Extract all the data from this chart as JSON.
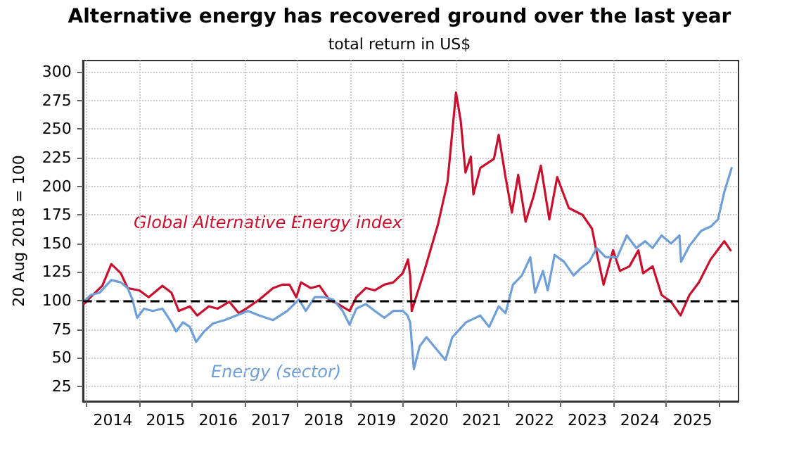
{
  "chart_data": {
    "type": "line",
    "title": "Alternative energy has recovered ground over the last year",
    "subtitle": "total return in US$",
    "ylabel": "20 Aug 2018 = 100",
    "xlim": [
      2013.93,
      2026.37
    ],
    "xticks": [
      {
        "value": 2014,
        "label": null
      },
      {
        "value": 2014.5,
        "label": "2014"
      },
      {
        "value": 2015,
        "label": null
      },
      {
        "value": 2015.5,
        "label": "2015"
      },
      {
        "value": 2016,
        "label": null
      },
      {
        "value": 2016.5,
        "label": "2016"
      },
      {
        "value": 2017,
        "label": null
      },
      {
        "value": 2017.5,
        "label": "2017"
      },
      {
        "value": 2018,
        "label": null
      },
      {
        "value": 2018.5,
        "label": "2018"
      },
      {
        "value": 2019,
        "label": null
      },
      {
        "value": 2019.5,
        "label": "2019"
      },
      {
        "value": 2020,
        "label": null
      },
      {
        "value": 2020.5,
        "label": "2020"
      },
      {
        "value": 2021,
        "label": null
      },
      {
        "value": 2021.5,
        "label": "2021"
      },
      {
        "value": 2022,
        "label": null
      },
      {
        "value": 2022.5,
        "label": "2022"
      },
      {
        "value": 2023,
        "label": null
      },
      {
        "value": 2023.5,
        "label": "2023"
      },
      {
        "value": 2024,
        "label": null
      },
      {
        "value": 2024.5,
        "label": "2024"
      },
      {
        "value": 2025,
        "label": null
      },
      {
        "value": 2025.5,
        "label": "2025"
      },
      {
        "value": 2026,
        "label": null
      }
    ],
    "ylim": [
      12,
      310
    ],
    "yticks": [
      25,
      50,
      75,
      100,
      125,
      150,
      175,
      200,
      225,
      250,
      275,
      300
    ],
    "grid": true,
    "marker": "none",
    "line_style": "solid",
    "ref_lines": [
      {
        "axis": "y",
        "value": 100,
        "color": "#000000",
        "line_style": "dashed"
      }
    ],
    "series": [
      {
        "name": "Global Alternative Energy index",
        "color": "#c8102e",
        "x": [
          2013.95,
          2014.12,
          2014.3,
          2014.47,
          2014.65,
          2014.78,
          2015,
          2015.18,
          2015.44,
          2015.61,
          2015.75,
          2015.96,
          2016.1,
          2016.32,
          2016.49,
          2016.71,
          2016.89,
          2017.06,
          2017.28,
          2017.54,
          2017.72,
          2017.85,
          2017.98,
          2018.07,
          2018.25,
          2018.42,
          2018.6,
          2018.77,
          2018.99,
          2019.12,
          2019.3,
          2019.47,
          2019.65,
          2019.82,
          2020,
          2020.1,
          2020.14,
          2020.17,
          2020.41,
          2020.67,
          2020.85,
          2021.01,
          2021.1,
          2021.19,
          2021.29,
          2021.34,
          2021.47,
          2021.6,
          2021.73,
          2021.82,
          2021.95,
          2022.07,
          2022.19,
          2022.33,
          2022.48,
          2022.62,
          2022.78,
          2022.93,
          2023.15,
          2023.41,
          2023.59,
          2023.68,
          2023.81,
          2023.99,
          2024.12,
          2024.3,
          2024.47,
          2024.56,
          2024.74,
          2024.91,
          2025.09,
          2025.27,
          2025.44,
          2025.62,
          2025.84,
          2026.1,
          2026.22
        ],
        "values": [
          97,
          105,
          113,
          132,
          124,
          111,
          109,
          103,
          113,
          107,
          91,
          95,
          87,
          95,
          93,
          99,
          89,
          94,
          101,
          111,
          114,
          114,
          103,
          116,
          111,
          113,
          101,
          97,
          91,
          103,
          111,
          109,
          114,
          116,
          124,
          136,
          122,
          91,
          126,
          167,
          204,
          282,
          257,
          212,
          226,
          193,
          216,
          220,
          224,
          245,
          208,
          177,
          210,
          169,
          191,
          218,
          171,
          208,
          181,
          175,
          163,
          142,
          114,
          144,
          126,
          130,
          144,
          124,
          130,
          105,
          99,
          87,
          105,
          116,
          136,
          152,
          144
        ]
      },
      {
        "name": "Energy (sector)",
        "color": "#6f9fd8",
        "x": [
          2013.95,
          2014.08,
          2014.25,
          2014.47,
          2014.65,
          2014.78,
          2014.87,
          2014.96,
          2015.09,
          2015.26,
          2015.44,
          2015.61,
          2015.7,
          2015.83,
          2015.96,
          2016.08,
          2016.23,
          2016.4,
          2016.62,
          2016.84,
          2017.06,
          2017.28,
          2017.54,
          2017.81,
          2018.03,
          2018.16,
          2018.33,
          2018.51,
          2018.68,
          2018.86,
          2018.99,
          2019.12,
          2019.3,
          2019.47,
          2019.65,
          2019.82,
          2020,
          2020.09,
          2020.14,
          2020.21,
          2020.32,
          2020.45,
          2020.63,
          2020.81,
          2020.94,
          2021.2,
          2021.47,
          2021.64,
          2021.82,
          2021.95,
          2022.09,
          2022.26,
          2022.42,
          2022.51,
          2022.66,
          2022.75,
          2022.88,
          2023.06,
          2023.24,
          2023.37,
          2023.54,
          2023.68,
          2023.85,
          2024.07,
          2024.25,
          2024.43,
          2024.6,
          2024.74,
          2024.91,
          2025.09,
          2025.25,
          2025.28,
          2025.44,
          2025.66,
          2025.85,
          2025.98,
          2026.1,
          2026.24
        ],
        "values": [
          99,
          105,
          107,
          118,
          116,
          111,
          101,
          85,
          93,
          91,
          93,
          81,
          73,
          81,
          77,
          64,
          73,
          80,
          83,
          87,
          91,
          87,
          83,
          91,
          101,
          91,
          103,
          103,
          101,
          91,
          79,
          93,
          97,
          91,
          85,
          91,
          91,
          87,
          81,
          40,
          60,
          68,
          58,
          48,
          68,
          81,
          87,
          77,
          95,
          89,
          114,
          122,
          138,
          107,
          126,
          109,
          140,
          134,
          122,
          128,
          134,
          146,
          138,
          138,
          157,
          146,
          152,
          146,
          157,
          150,
          157,
          134,
          148,
          161,
          165,
          171,
          195,
          216
        ]
      }
    ]
  }
}
